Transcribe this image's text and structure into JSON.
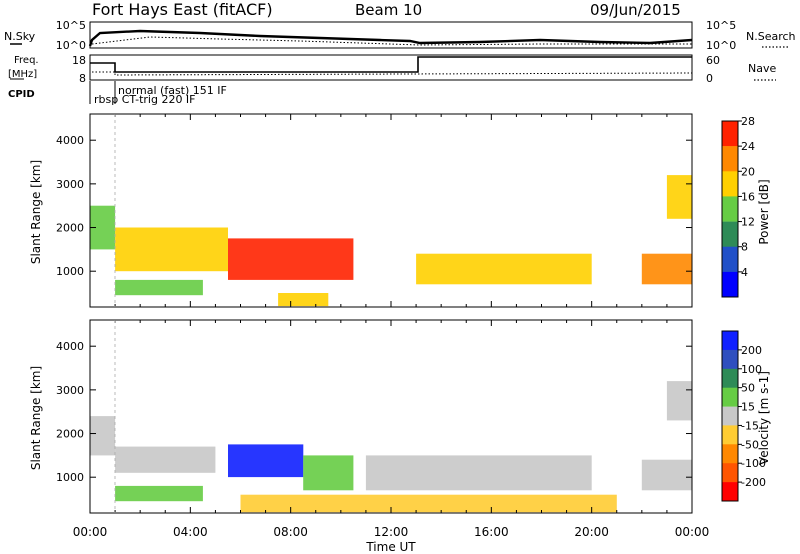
{
  "header": {
    "site": "Fort Hays East (fitACF)",
    "beam": "Beam 10",
    "date": "09/Jun/2015"
  },
  "noise": {
    "left_label": "N.Sky",
    "right_label": "N.Search",
    "ticks_left": [
      "10^5",
      "10^0"
    ],
    "ticks_right": [
      "10^5",
      "10^0"
    ]
  },
  "freq": {
    "label_top": "Freq.",
    "label_unit": "[MHz]",
    "left_ticks": [
      "18",
      "8"
    ],
    "right_ticks": [
      "60",
      "0"
    ],
    "right_label": "Nave"
  },
  "cpid": {
    "label": "CPID",
    "modes": [
      "normal (fast) 151 IF",
      "rbsp CT-trig 220 IF"
    ]
  },
  "x_axis": {
    "label": "Time UT",
    "ticks": [
      "00:00",
      "04:00",
      "08:00",
      "12:00",
      "16:00",
      "20:00",
      "00:00"
    ]
  },
  "colors": {
    "missing": "#ffffff"
  },
  "chart_data": [
    {
      "type": "heatmap",
      "name": "power",
      "ylabel": "Slant Range [km]",
      "ylim": [
        180,
        4600
      ],
      "yticks": [
        "1000",
        "2000",
        "3000",
        "4000"
      ],
      "xlim_hours": [
        0,
        24
      ],
      "colorbar": {
        "label": "Power [dB]",
        "ticks": [
          "4",
          "8",
          "12",
          "16",
          "20",
          "24",
          "28"
        ],
        "colors": [
          "#0000ff",
          "#2050c8",
          "#2e8b57",
          "#66cc44",
          "#ffd000",
          "#ff8800",
          "#ff2200"
        ]
      },
      "regions": [
        {
          "t0": 0.0,
          "t1": 1.0,
          "r0": 1500,
          "r1": 2500,
          "value": 12
        },
        {
          "t0": 1.0,
          "t1": 5.5,
          "r0": 1000,
          "r1": 2000,
          "value": 18
        },
        {
          "t0": 1.0,
          "t1": 4.5,
          "r0": 450,
          "r1": 800,
          "value": 14
        },
        {
          "t0": 5.5,
          "t1": 10.5,
          "r0": 800,
          "r1": 1750,
          "value": 26
        },
        {
          "t0": 7.5,
          "t1": 9.5,
          "r0": 200,
          "r1": 500,
          "value": 18
        },
        {
          "t0": 13.0,
          "t1": 20.0,
          "r0": 700,
          "r1": 1400,
          "value": 17
        },
        {
          "t0": 22.0,
          "t1": 24.0,
          "r0": 700,
          "r1": 1400,
          "value": 20
        },
        {
          "t0": 23.0,
          "t1": 24.0,
          "r0": 2200,
          "r1": 3200,
          "value": 16
        }
      ]
    },
    {
      "type": "heatmap",
      "name": "velocity",
      "ylabel": "Slant Range [km]",
      "ylim": [
        180,
        4600
      ],
      "yticks": [
        "1000",
        "2000",
        "3000",
        "4000"
      ],
      "xlim_hours": [
        0,
        24
      ],
      "colorbar": {
        "label": "Velocity [m s-1]",
        "ticks": [
          "200",
          "100",
          "50",
          "15",
          "-15",
          "-50",
          "-100",
          "-200"
        ],
        "colors": [
          "#1020ff",
          "#2f4fbf",
          "#2e8b57",
          "#66cc44",
          "#c8c8c8",
          "#ffcc33",
          "#ff8800",
          "#ff5500",
          "#ff0000"
        ]
      },
      "regions": [
        {
          "t0": 0.0,
          "t1": 1.0,
          "r0": 1500,
          "r1": 2400,
          "value": 0
        },
        {
          "t0": 1.0,
          "t1": 5.0,
          "r0": 1100,
          "r1": 1700,
          "value": 0
        },
        {
          "t0": 1.0,
          "t1": 4.5,
          "r0": 450,
          "r1": 800,
          "value": 40
        },
        {
          "t0": 5.5,
          "t1": 8.5,
          "r0": 1000,
          "r1": 1750,
          "value": 220
        },
        {
          "t0": 8.5,
          "t1": 10.5,
          "r0": 700,
          "r1": 1500,
          "value": 40
        },
        {
          "t0": 11.0,
          "t1": 20.0,
          "r0": 700,
          "r1": 1500,
          "value": 0
        },
        {
          "t0": 6.0,
          "t1": 21.0,
          "r0": 200,
          "r1": 600,
          "value": -40
        },
        {
          "t0": 22.0,
          "t1": 24.0,
          "r0": 700,
          "r1": 1400,
          "value": 0
        },
        {
          "t0": 23.0,
          "t1": 24.0,
          "r0": 2300,
          "r1": 3200,
          "value": 0
        }
      ]
    }
  ]
}
